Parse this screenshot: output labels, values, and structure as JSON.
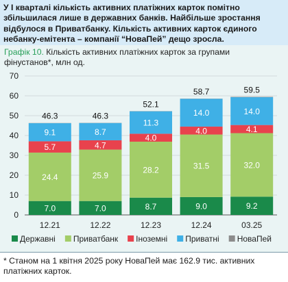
{
  "headline": "У І кварталі кількість активних платіжних карток помітно збільшилася лише в державних банків. Найбільше зростання відбулося в Приватбанку. Кількість активних карток єдиного небанку-емітента – компанії “НоваПей” дещо зросла.",
  "chart_title_prefix": "Графік 10.",
  "chart_title_text": " Кількість активних платіжних карток за групами фінустанов*, млн од.",
  "footnote": "* Станом на 1 квітня 2025 року НоваПей має 162.9 тис. активних платіжних карток.",
  "chart_data": {
    "type": "bar",
    "stacked": true,
    "categories": [
      "12.21",
      "12.22",
      "12.23",
      "12.24",
      "03.25"
    ],
    "ylim": [
      0,
      70
    ],
    "yticks": [
      0,
      10,
      20,
      30,
      40,
      50,
      60,
      70
    ],
    "grid": true,
    "legend_placement": "bottom",
    "series": [
      {
        "name": "Державні",
        "color": "#1a8a4a",
        "values": [
          7.0,
          7.0,
          8.7,
          9.0,
          9.2
        ],
        "labels": [
          "7.0",
          "7.0",
          "8.7",
          "9.0",
          "9.2"
        ]
      },
      {
        "name": "Приватбанк",
        "color": "#a3cd68",
        "values": [
          24.4,
          25.9,
          28.2,
          31.5,
          32.0
        ],
        "labels": [
          "24.4",
          "25.9",
          "28.2",
          "31.5",
          "32.0"
        ]
      },
      {
        "name": "Іноземні",
        "color": "#e8424d",
        "values": [
          5.7,
          4.7,
          4.0,
          4.0,
          4.1
        ],
        "labels": [
          "5.7",
          "4.7",
          "4.0",
          "4.0",
          "4.1"
        ]
      },
      {
        "name": "Приватні",
        "color": "#3fb0e6",
        "values": [
          9.1,
          8.7,
          11.3,
          14.0,
          14.0
        ],
        "labels": [
          "9.1",
          "8.7",
          "11.3",
          "14.0",
          "14.0"
        ]
      },
      {
        "name": "НоваПей",
        "color": "#8c8c8c",
        "values": [
          0.1,
          0.1,
          0.1,
          0.1,
          0.2
        ],
        "labels": []
      }
    ],
    "totals": [
      "46.3",
      "46.3",
      "52.1",
      "58.7",
      "59.5"
    ]
  }
}
